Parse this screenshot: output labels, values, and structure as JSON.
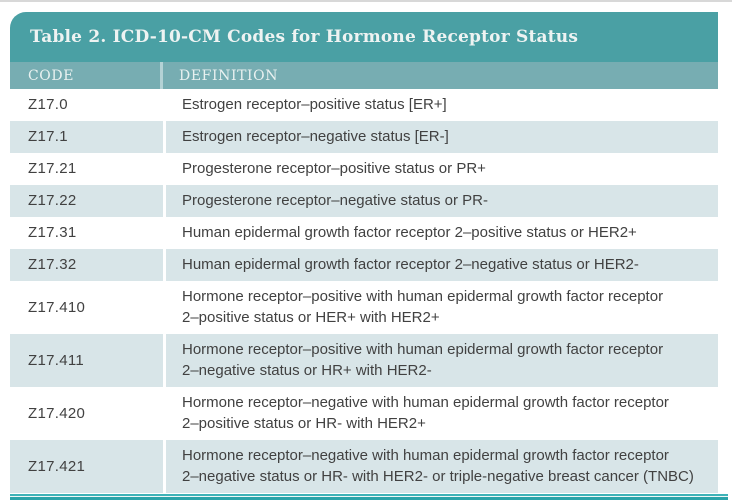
{
  "table": {
    "title": "Table 2. ICD-10-CM Codes for Hormone Receptor Status",
    "columns": {
      "code": "CODE",
      "definition": "DEFINITION"
    },
    "rows": [
      {
        "code": "Z17.0",
        "definition": "Estrogen receptor–positive status [ER+]"
      },
      {
        "code": "Z17.1",
        "definition": "Estrogen receptor–negative status [ER-]"
      },
      {
        "code": "Z17.21",
        "definition": "Progesterone receptor–positive status or PR+"
      },
      {
        "code": "Z17.22",
        "definition": "Progesterone receptor–negative status or PR-"
      },
      {
        "code": "Z17.31",
        "definition": "Human epidermal growth factor receptor 2–positive status or HER2+"
      },
      {
        "code": "Z17.32",
        "definition": "Human epidermal growth factor receptor 2–negative status or HER2-"
      },
      {
        "code": "Z17.410",
        "definition": "Hormone receptor–positive with human epidermal growth factor receptor\n2–positive status or HER+ with HER2+"
      },
      {
        "code": "Z17.411",
        "definition": "Hormone receptor–positive with human epidermal growth factor receptor\n2–negative status or HR+ with HER2-"
      },
      {
        "code": "Z17.420",
        "definition": "Hormone receptor–negative with human epidermal growth factor receptor\n2–positive status or HR- with HER2+"
      },
      {
        "code": "Z17.421",
        "definition": "Hormone receptor–negative with human epidermal growth factor receptor\n2–negative status or HR- with HER2- or triple-negative breast cancer (TNBC)"
      }
    ]
  },
  "colors": {
    "title_bar": "#4aa0a4",
    "header_row": "#77adb2",
    "stripe_row": "#d8e5e8",
    "body_text": "#414141",
    "title_text": "#eef3f2",
    "bottom_rule_teal": "#2aa3a9",
    "top_strip_gray": "#d8d8d8"
  }
}
